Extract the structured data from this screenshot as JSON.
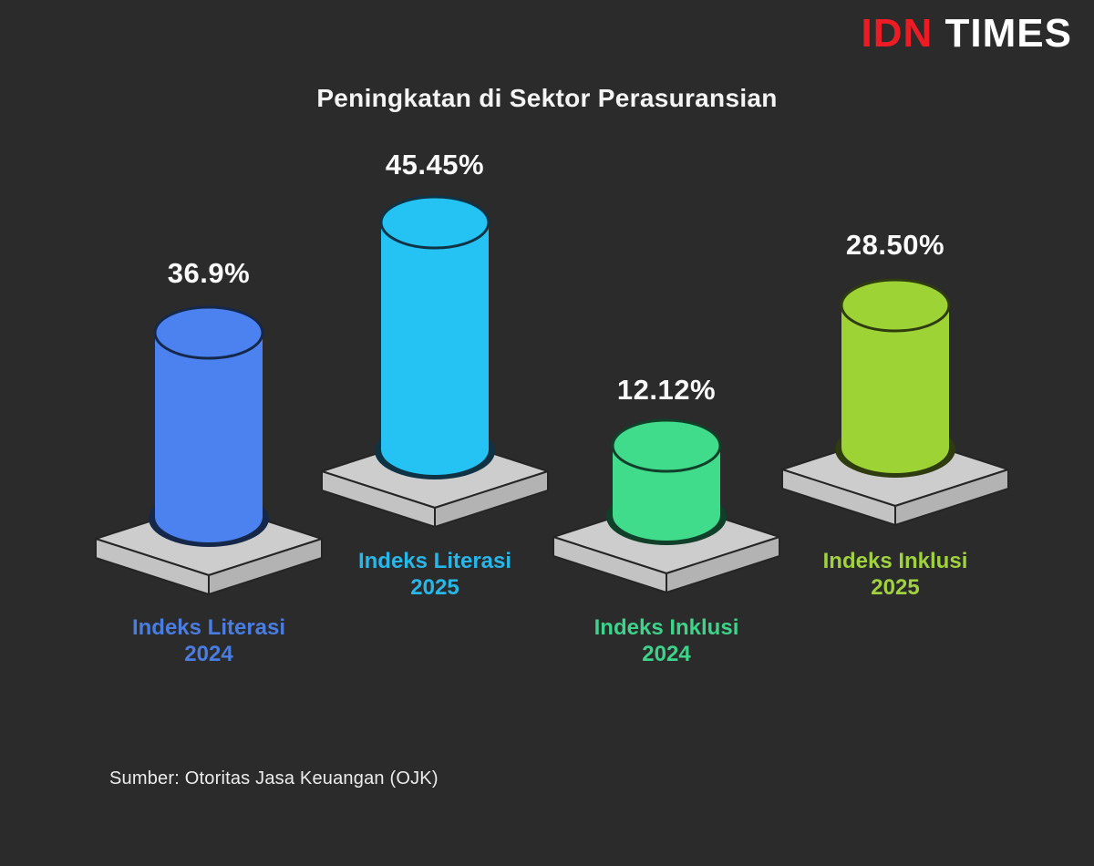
{
  "header": {
    "logo": {
      "part1": "IDN",
      "part1_color": "#ec1c24",
      "part2": "TIMES",
      "part2_color": "#ffffff"
    }
  },
  "chart_data": {
    "type": "bar",
    "title": "Peningkatan di Sektor Perasuransian",
    "unit": "%",
    "categories": [
      "Indeks Literasi 2024",
      "Indeks Literasi 2025",
      "Indeks Inklusi 2024",
      "Indeks Inklusi 2025"
    ],
    "values": [
      36.9,
      45.45,
      12.12,
      28.5
    ],
    "bars": [
      {
        "name": "Indeks Literasi",
        "year": "2024",
        "value": 36.9,
        "value_label": "36.9%",
        "color": "#4b82f0",
        "dark": "#16284a",
        "label_color": "#4a7de2"
      },
      {
        "name": "Indeks Literasi",
        "year": "2025",
        "value": 45.45,
        "value_label": "45.45%",
        "color": "#25c3f3",
        "dark": "#0f3345",
        "label_color": "#28b7e9"
      },
      {
        "name": "Indeks Inklusi",
        "year": "2024",
        "value": 12.12,
        "value_label": "12.12%",
        "color": "#41db8c",
        "dark": "#11402a",
        "label_color": "#3ed38a"
      },
      {
        "name": "Indeks Inklusi",
        "year": "2025",
        "value": 28.5,
        "value_label": "28.50%",
        "color": "#9ed335",
        "dark": "#2e3c10",
        "label_color": "#a0d23e"
      }
    ],
    "platform_colors": {
      "top": "#cdcdcd",
      "left": "#c3c3c3",
      "right": "#b3b3b3",
      "outline": "#252525"
    },
    "background": "#2b2b2b",
    "grid": false,
    "legend": "none",
    "source": "Sumber: Otoritas Jasa Keuangan (OJK)"
  }
}
